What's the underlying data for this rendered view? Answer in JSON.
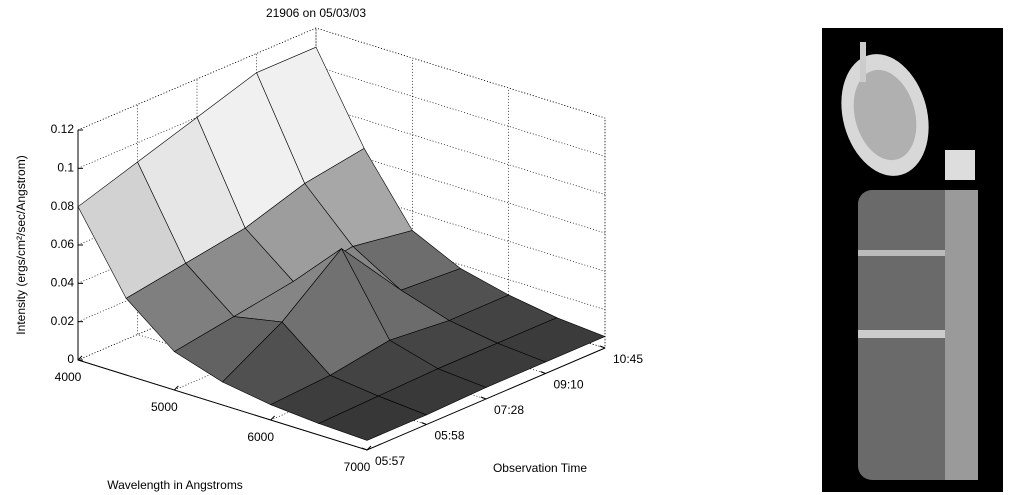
{
  "chart_data": {
    "type": "surface",
    "title": "21906 on 05/03/03",
    "xlabel": "Wavelength in Angstroms",
    "ylabel": "Observation Time",
    "zlabel": "Intensity (ergs/cm²/sec/Angstrom)",
    "x": [
      4000,
      4500,
      5000,
      5500,
      6000,
      6500,
      7000
    ],
    "categories": [
      "05:57",
      "05:58",
      "07:28",
      "09:10",
      "10:45"
    ],
    "z": [
      [
        0.08,
        0.04,
        0.02,
        0.012,
        0.008,
        0.006,
        0.005
      ],
      [
        0.09,
        0.045,
        0.025,
        0.03,
        0.01,
        0.007,
        0.005
      ],
      [
        0.1,
        0.05,
        0.03,
        0.055,
        0.015,
        0.008,
        0.006
      ],
      [
        0.11,
        0.06,
        0.035,
        0.02,
        0.012,
        0.008,
        0.006
      ],
      [
        0.11,
        0.065,
        0.03,
        0.018,
        0.012,
        0.008,
        0.006
      ]
    ],
    "xlim": [
      4000,
      7000
    ],
    "xticks": [
      4000,
      5000,
      6000,
      7000
    ],
    "zlim": [
      0,
      0.12
    ],
    "zticks": [
      0,
      0.02,
      0.04,
      0.06,
      0.08,
      0.1,
      0.12
    ],
    "grid": true
  }
}
